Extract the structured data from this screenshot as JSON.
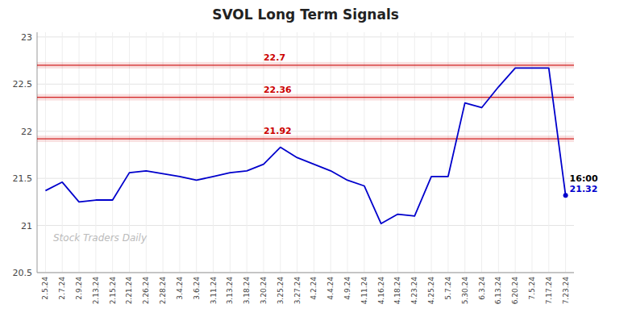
{
  "chart_data": {
    "type": "line",
    "title": "SVOL Long Term Signals",
    "categories": [
      "2.5.24",
      "2.7.24",
      "2.9.24",
      "2.13.24",
      "2.15.24",
      "2.21.24",
      "2.26.24",
      "2.28.24",
      "3.4.24",
      "3.6.24",
      "3.11.24",
      "3.13.24",
      "3.18.24",
      "3.20.24",
      "3.25.24",
      "3.27.24",
      "4.2.24",
      "4.4.24",
      "4.9.24",
      "4.11.24",
      "4.16.24",
      "4.18.24",
      "4.23.24",
      "4.25.24",
      "5.7.24",
      "5.30.24",
      "6.3.24",
      "6.13.24",
      "6.20.24",
      "7.5.24",
      "7.17.24",
      "7.23.24"
    ],
    "values": [
      21.37,
      21.46,
      21.25,
      21.27,
      21.27,
      21.56,
      21.58,
      21.55,
      21.52,
      21.48,
      21.52,
      21.56,
      21.58,
      21.65,
      21.83,
      21.72,
      21.65,
      21.58,
      21.48,
      21.42,
      21.02,
      21.12,
      21.1,
      21.52,
      21.52,
      22.3,
      22.25,
      22.47,
      22.67,
      22.67,
      22.67,
      21.32
    ],
    "color": "#0000cc",
    "ylim": [
      20.5,
      23.05
    ],
    "yticks": [
      20.5,
      21,
      21.5,
      22,
      22.5,
      23
    ],
    "grid": true,
    "annotations": [
      {
        "type": "hline",
        "y": 22.7,
        "text": "22.7",
        "color": "#cc0000",
        "x": "3.20.24"
      },
      {
        "type": "hline",
        "y": 22.36,
        "text": "22.36",
        "color": "#cc0000",
        "x": "3.20.24"
      },
      {
        "type": "hline",
        "y": 21.92,
        "text": "21.92",
        "color": "#cc0000",
        "x": "3.20.24"
      },
      {
        "type": "point",
        "x": "7.23.24",
        "text": "16:00",
        "color": "#000000"
      },
      {
        "type": "point",
        "x": "7.23.24",
        "text": "21.32",
        "color": "#0000cc"
      },
      {
        "type": "watermark",
        "text": "Stock Traders Daily",
        "color": "#bbbbbb"
      }
    ]
  }
}
